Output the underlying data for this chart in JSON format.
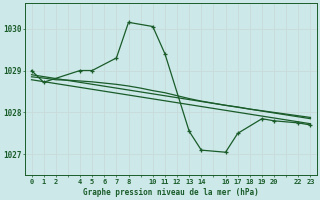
{
  "bg_color": "#cce8e8",
  "grid_color": "#aacccc",
  "line_color": "#1a5c2a",
  "title": "Graphe pression niveau de la mer (hPa)",
  "ylim": [
    1026.5,
    1030.6
  ],
  "yticks": [
    1027,
    1028,
    1029,
    1030
  ],
  "xtick_labels": [
    "0",
    "1",
    "2",
    "",
    "4",
    "5",
    "6",
    "7",
    "8",
    "",
    "10",
    "11",
    "12",
    "13",
    "14",
    "",
    "16",
    "17",
    "18",
    "19",
    "20",
    "",
    "22",
    "23"
  ],
  "xtick_positions": [
    0,
    1,
    2,
    3,
    4,
    5,
    6,
    7,
    8,
    9,
    10,
    11,
    12,
    13,
    14,
    15,
    16,
    17,
    18,
    19,
    20,
    21,
    22,
    23
  ],
  "series_main": {
    "x": [
      0,
      1,
      4,
      5,
      7,
      8,
      10,
      11,
      13,
      14,
      16,
      17,
      19,
      20,
      22,
      23
    ],
    "y": [
      1029.0,
      1028.72,
      1029.0,
      1029.0,
      1029.3,
      1030.15,
      1030.05,
      1029.4,
      1027.55,
      1027.1,
      1027.05,
      1027.5,
      1027.85,
      1027.8,
      1027.75,
      1027.7
    ]
  },
  "series_smooth": {
    "x": [
      0,
      1,
      2,
      3,
      4,
      5,
      6,
      7,
      8,
      9,
      10,
      11,
      12,
      13,
      14,
      15,
      16,
      17,
      18,
      19,
      20,
      21,
      22,
      23
    ],
    "y": [
      1028.85,
      1028.82,
      1028.78,
      1028.77,
      1028.75,
      1028.73,
      1028.7,
      1028.67,
      1028.63,
      1028.58,
      1028.52,
      1028.47,
      1028.4,
      1028.33,
      1028.27,
      1028.22,
      1028.17,
      1028.13,
      1028.08,
      1028.04,
      1028.0,
      1027.96,
      1027.92,
      1027.88
    ]
  },
  "series_linear1": {
    "x": [
      0,
      23
    ],
    "y": [
      1028.9,
      1027.85
    ]
  },
  "series_linear2": {
    "x": [
      0,
      23
    ],
    "y": [
      1028.78,
      1027.73
    ]
  }
}
